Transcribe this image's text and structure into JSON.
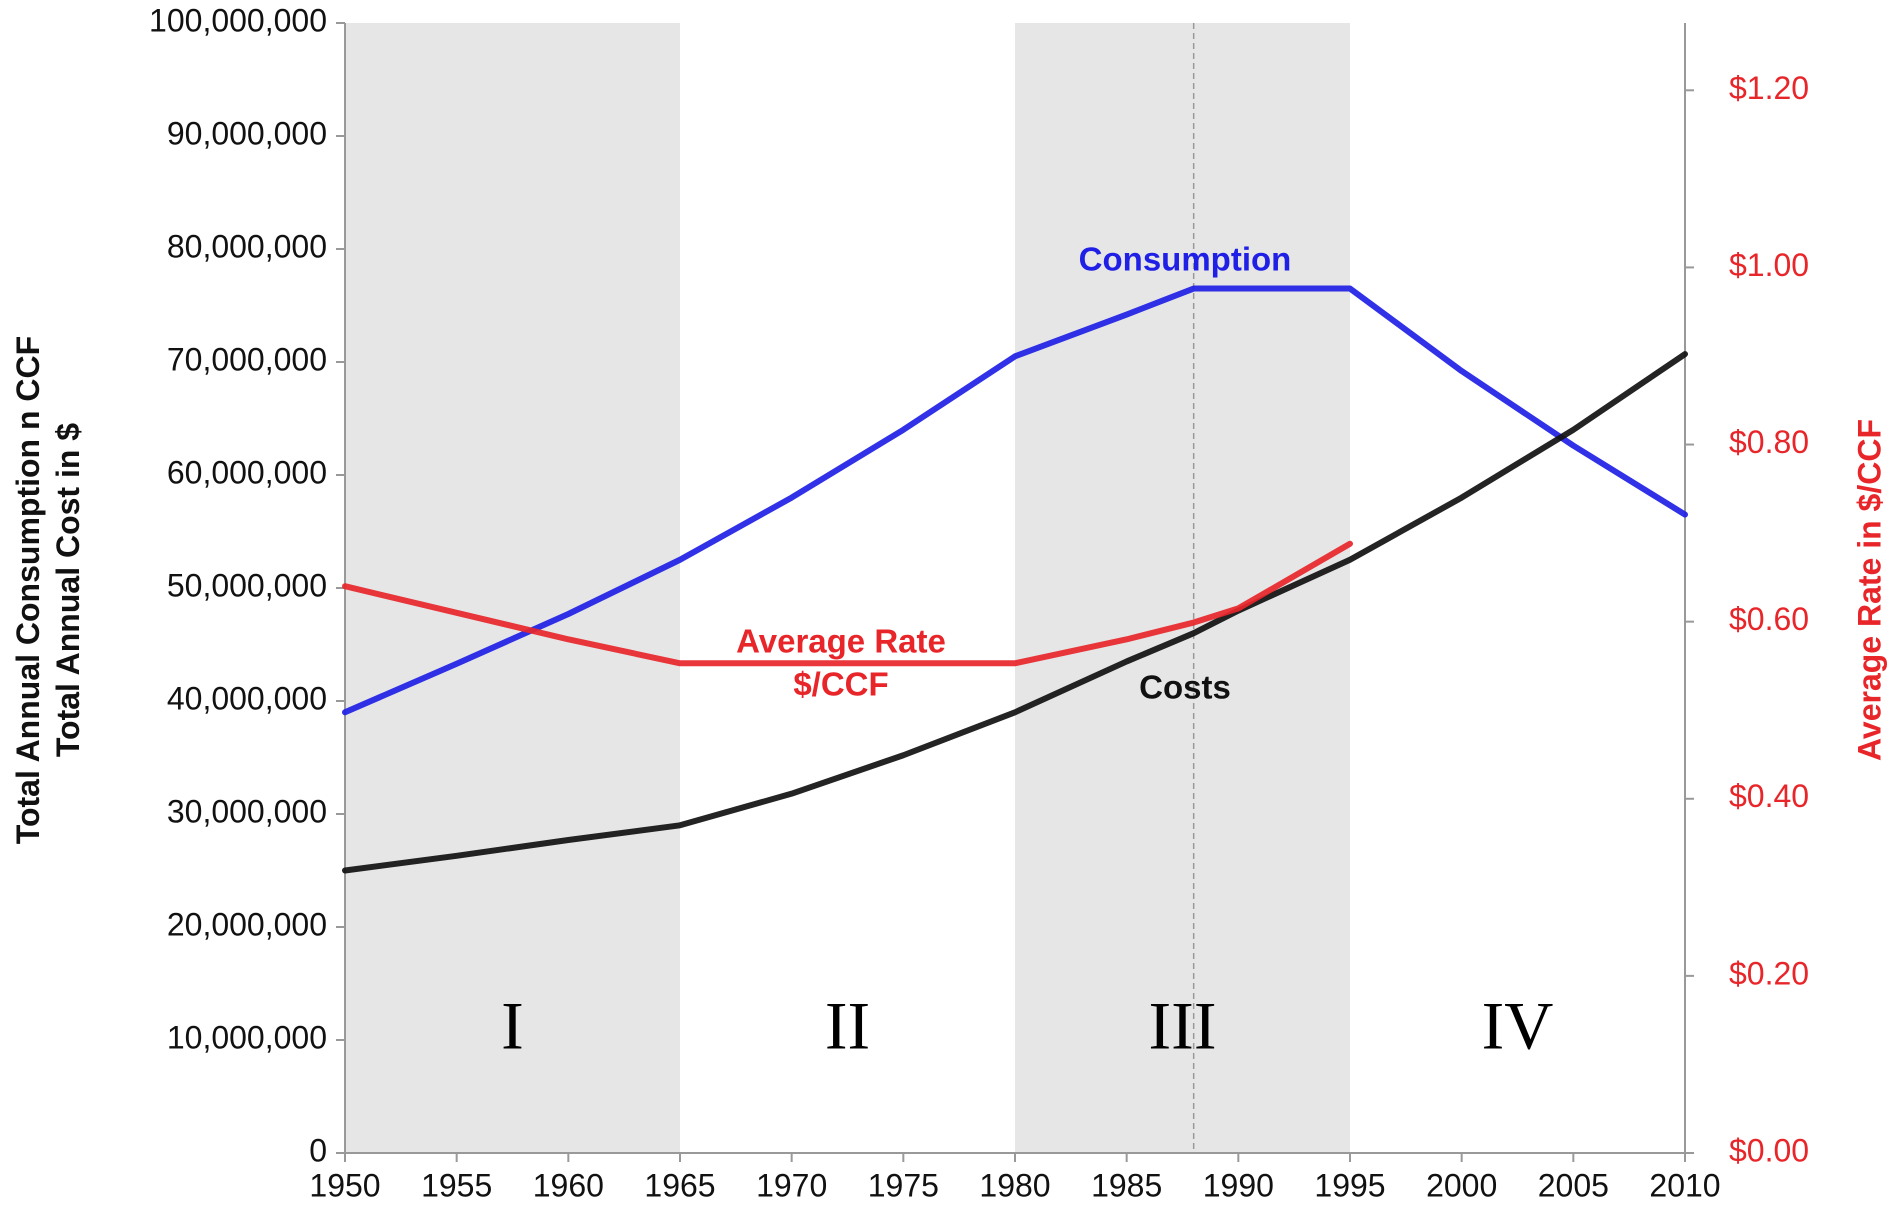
{
  "chart_data": {
    "type": "line",
    "x": [
      1950,
      1955,
      1960,
      1965,
      1970,
      1975,
      1980,
      1985,
      1988,
      1990,
      1995,
      2000,
      2005,
      2010
    ],
    "series": [
      {
        "name": "Consumption",
        "color": "#1f1fe6",
        "values": [
          39000000,
          43300000,
          47700000,
          52500000,
          58000000,
          64000000,
          70500000,
          74200000,
          76500000,
          76500000,
          76500000,
          69200000,
          62600000,
          56500000
        ]
      },
      {
        "name": "Costs",
        "color": "#111111",
        "values": [
          25000000,
          26300000,
          27700000,
          29000000,
          31800000,
          35200000,
          39000000,
          43500000,
          46000000,
          48000000,
          52500000,
          58000000,
          64000000,
          70700000
        ]
      },
      {
        "name": "Average Rate $/CCF",
        "color": "#e8262a",
        "axis": "y2",
        "values": [
          0.64,
          0.61,
          0.58,
          0.553,
          0.553,
          0.553,
          0.553,
          0.58,
          0.599,
          0.615,
          0.688,
          null,
          null,
          null
        ]
      }
    ],
    "annotations": [
      "Consumption",
      "Average Rate",
      "$/CCF",
      "Costs"
    ],
    "regions": [
      {
        "label": "I",
        "x": [
          1950,
          1965
        ],
        "shaded": true
      },
      {
        "label": "II",
        "x": [
          1965,
          1980
        ],
        "shaded": false
      },
      {
        "label": "III",
        "x": [
          1980,
          1995
        ],
        "shaded": true
      },
      {
        "label": "IV",
        "x": [
          1995,
          2010
        ],
        "shaded": false
      }
    ],
    "marker_x": 1988,
    "y_label": [
      "Total Annual Consumption n CCF",
      "Total Annual Cost in $"
    ],
    "y2_label": "Average Rate in $/CCF",
    "xlim": [
      1950,
      2010
    ],
    "xticks": [
      1950,
      1955,
      1960,
      1965,
      1970,
      1975,
      1980,
      1985,
      1990,
      1995,
      2000,
      2005,
      2010
    ],
    "ylim": [
      0,
      100000000
    ],
    "yticks": [
      0,
      {
        "value": 10000000,
        "label": "10,000,000"
      },
      {
        "value": 20000000,
        "label": "20,000,000"
      },
      {
        "value": 30000000,
        "label": "30,000,000"
      },
      {
        "value": 40000000,
        "label": "40,000,000"
      },
      {
        "value": 50000000,
        "label": "50,000,000"
      },
      {
        "value": 60000000,
        "label": "60,000,000"
      },
      {
        "value": 70000000,
        "label": "70,000,000"
      },
      {
        "value": 80000000,
        "label": "80,000,000"
      },
      {
        "value": 90000000,
        "label": "90,000,000"
      },
      {
        "value": 100000000,
        "label": "100,000,000"
      }
    ],
    "y2lim": [
      0,
      1.276
    ],
    "y2ticks": [
      {
        "value": 0,
        "label": "$0.00"
      },
      {
        "value": 0.2,
        "label": "$0.20"
      },
      {
        "value": 0.4,
        "label": "$0.40"
      },
      {
        "value": 0.6,
        "label": "$0.60"
      },
      {
        "value": 0.8,
        "label": "$0.80"
      },
      {
        "value": 1.0,
        "label": "$1.00"
      },
      {
        "value": 1.2,
        "label": "$1.20"
      }
    ],
    "y2_color": "#e8262a"
  }
}
